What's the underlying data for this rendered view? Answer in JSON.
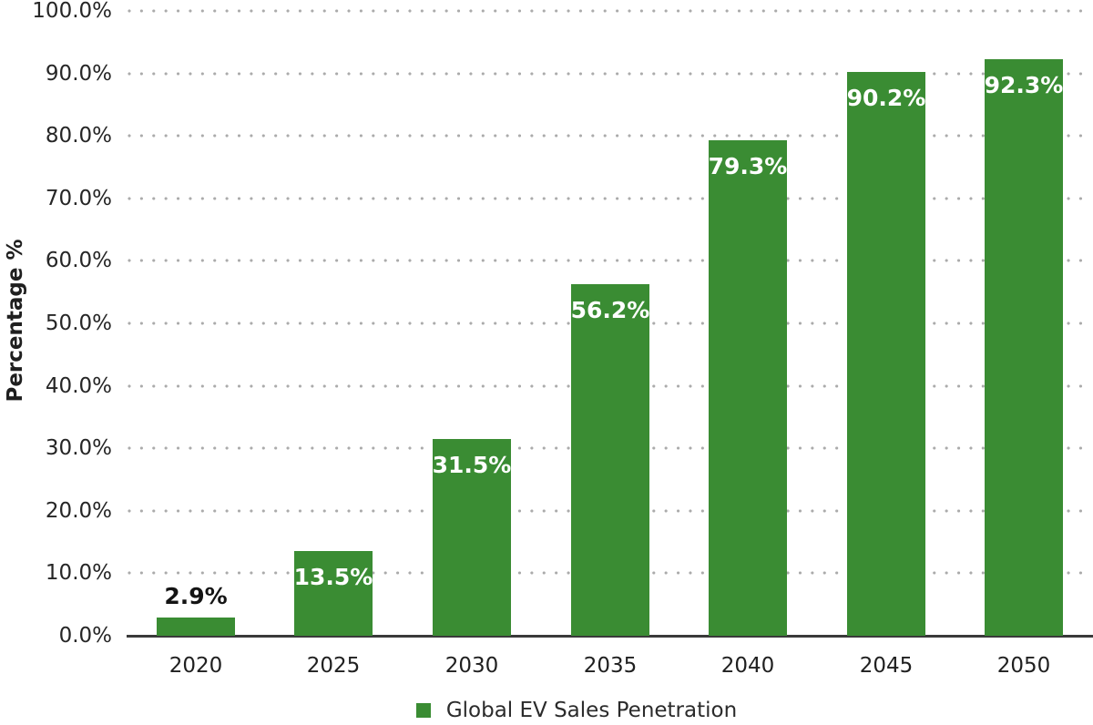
{
  "chart_data": {
    "type": "bar",
    "title": "",
    "categories": [
      "2020",
      "2025",
      "2030",
      "2035",
      "2040",
      "2045",
      "2050"
    ],
    "series": [
      {
        "name": "Global EV Sales Penetration",
        "values": [
          2.9,
          13.5,
          31.5,
          56.2,
          79.3,
          90.2,
          92.3
        ],
        "labels": [
          "2.9%",
          "13.5%",
          "31.5%",
          "56.2%",
          "79.3%",
          "90.2%",
          "92.3%"
        ]
      }
    ],
    "xlabel": "",
    "ylabel": "Percentage %",
    "ylim": [
      0,
      100
    ],
    "y_ticks": [
      {
        "value": 0,
        "label": "0.0%"
      },
      {
        "value": 10,
        "label": "10.0%"
      },
      {
        "value": 20,
        "label": "20.0%"
      },
      {
        "value": 30,
        "label": "30.0%"
      },
      {
        "value": 40,
        "label": "40.0%"
      },
      {
        "value": 50,
        "label": "50.0%"
      },
      {
        "value": 60,
        "label": "60.0%"
      },
      {
        "value": 70,
        "label": "70.0%"
      },
      {
        "value": 80,
        "label": "80.0%"
      },
      {
        "value": 90,
        "label": "90.0%"
      },
      {
        "value": 100,
        "label": "100.0%"
      }
    ],
    "grid": "horizontal-dotted",
    "legend_position": "bottom"
  },
  "colors": {
    "bar": "#3a8c33",
    "axis_line": "#3a3a3a",
    "grid_dot": "#ababab",
    "tick_text": "#262626",
    "label_inside": "#ffffff",
    "label_outside": "#141414",
    "background": "#ffffff"
  }
}
